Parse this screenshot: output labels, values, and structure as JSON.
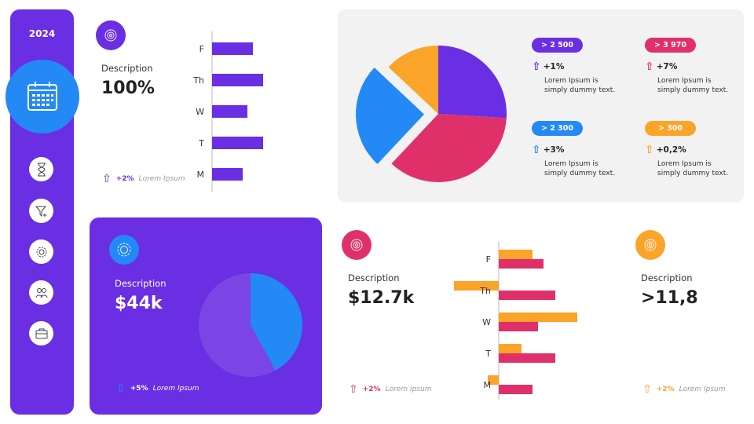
{
  "sidebar": {
    "year": "2024",
    "icons": [
      "calendar-icon",
      "hourglass-icon",
      "filter-icon",
      "gear-icon",
      "users-icon",
      "briefcase-icon"
    ]
  },
  "colors": {
    "purple": "#6a2ee3",
    "blue": "#2389f5",
    "pink": "#e0306a",
    "orange": "#fba42a",
    "light_purple": "#7b45e6"
  },
  "card1": {
    "description": "Description",
    "value": "100%",
    "change": "+2%",
    "note": "Lorem Ipsum"
  },
  "card2": {
    "description": "Description",
    "value": "$44k",
    "change": "+5%",
    "note": "Lorem Ipsum"
  },
  "card3": {
    "description": "Description",
    "value": "$12.7k",
    "change": "+2%",
    "note": "Lorem Ipsum"
  },
  "card4": {
    "description": "Description",
    "value": ">11,8",
    "change": "+2%",
    "note": "Lorem Ipsum"
  },
  "stats": [
    {
      "badge": "> 2 500",
      "change": "+1%",
      "text1": "Lorem Ipsum is",
      "text2": "simply  dummy text.",
      "color": "#6a2ee3"
    },
    {
      "badge": "> 3 970",
      "change": "+7%",
      "text1": "Lorem Ipsum is",
      "text2": "simply  dummy text.",
      "color": "#e0306a"
    },
    {
      "badge": "> 2 300",
      "change": "+3%",
      "text1": "Lorem Ipsum is",
      "text2": "simply  dummy text.",
      "color": "#2389f5"
    },
    {
      "badge": "> 300",
      "change": "+0,2%",
      "text1": "Lorem Ipsum is",
      "text2": "simply  dummy text.",
      "color": "#fba42a"
    }
  ],
  "chart_data": [
    {
      "type": "bar",
      "orientation": "horizontal",
      "categories": [
        "F",
        "Th",
        "W",
        "T",
        "M"
      ],
      "values": [
        52,
        65,
        45,
        65,
        39
      ],
      "color": "#6a2ee3"
    },
    {
      "type": "pie",
      "values": [
        26,
        36,
        25,
        13
      ],
      "colors": [
        "#6a2ee3",
        "#e0306a",
        "#2389f5",
        "#fba42a"
      ],
      "exploded": [
        false,
        false,
        true,
        false
      ]
    },
    {
      "type": "pie",
      "values": [
        42,
        58
      ],
      "colors": [
        "#2389f5",
        "#7b45e6"
      ]
    },
    {
      "type": "bar",
      "orientation": "horizontal",
      "categories": [
        "F",
        "Th",
        "W",
        "T",
        "M"
      ],
      "series": [
        {
          "values": [
            43,
            -57,
            100,
            29,
            -14
          ],
          "color": "#fba42a"
        },
        {
          "values": [
            57,
            72,
            50,
            72,
            43
          ],
          "color": "#e0306a"
        }
      ]
    }
  ]
}
